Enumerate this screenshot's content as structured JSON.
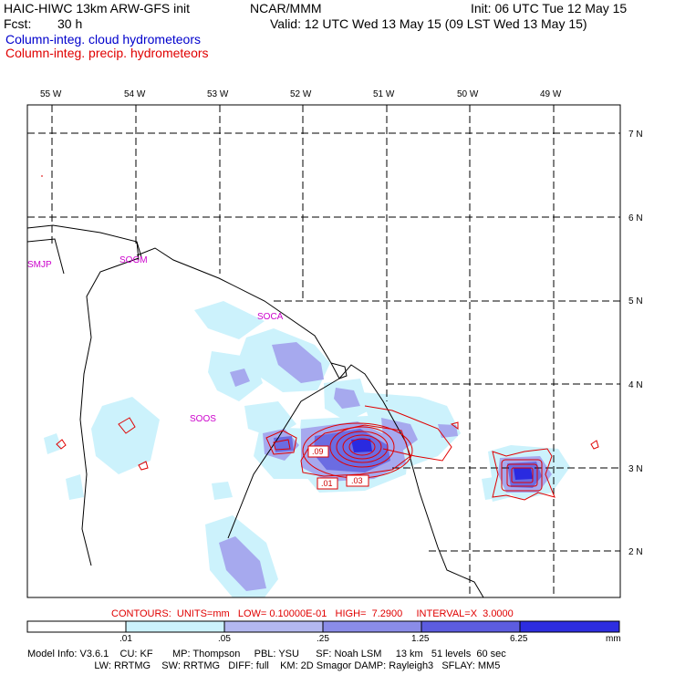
{
  "header": {
    "title_left": "HAIC-HIWC 13km ARW-GFS init",
    "agency": "NCAR/MMM",
    "init": "Init: 06 UTC Tue 12 May 15",
    "fcst_label": "Fcst:",
    "fcst_value": "30 h",
    "valid": "Valid: 12 UTC Wed 13 May 15 (09 LST Wed 13 May 15)",
    "field_cloud": "Column-integ. cloud hydrometeors",
    "field_precip": "Column-integ. precip. hydrometeors"
  },
  "colors": {
    "cloud_text": "#0000cc",
    "precip_text": "#e00000",
    "station": "#cc00cc",
    "shade": [
      "#ffffff",
      "#ccf2fc",
      "#b3b8f0",
      "#8a8ce8",
      "#5c5ce0",
      "#2d2de0",
      "#0000e8"
    ]
  },
  "map": {
    "longitudes": [
      "55 W",
      "54 W",
      "53 W",
      "52 W",
      "51 W",
      "50 W",
      "49 W"
    ],
    "latitudes": [
      "7 N",
      "6 N",
      "5 N",
      "4 N",
      "3 N",
      "2 N"
    ],
    "stations": [
      "SMJP",
      "SOGM",
      "SOCA",
      "SOOS"
    ],
    "contour_labels": [
      ".09",
      ".01",
      ".03"
    ]
  },
  "contours_line": "CONTOURS:  UNITS=mm   LOW= 0.10000E-01   HIGH=  7.2900     INTERVAL=X  3.0000",
  "colorbar": {
    "labels": [
      ".01",
      ".05",
      ".25",
      "1.25",
      "6.25"
    ],
    "unit": "mm"
  },
  "model_info": {
    "line1": "Model Info: V3.6.1    CU: KF       MP: Thompson     PBL: YSU      SF: Noah LSM     13 km   51 levels  60 sec",
    "line2": "                        LW: RRTMG    SW: RRTMG   DIFF: full    KM: 2D Smagor DAMP: Rayleigh3   SFLAY: MM5"
  }
}
